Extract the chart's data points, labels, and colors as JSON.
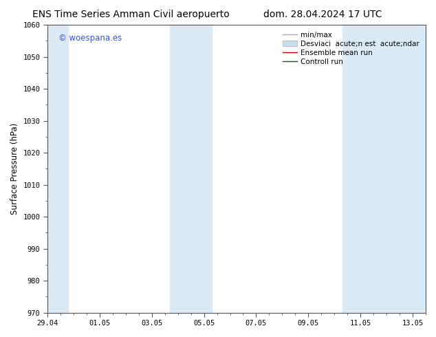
{
  "title_left": "ENS Time Series Amman Civil aeropuerto",
  "title_right": "dom. 28.04.2024 17 UTC",
  "ylabel": "Surface Pressure (hPa)",
  "ylim": [
    970,
    1060
  ],
  "yticks": [
    970,
    980,
    990,
    1000,
    1010,
    1020,
    1030,
    1040,
    1050,
    1060
  ],
  "xtick_labels": [
    "29.04",
    "01.05",
    "03.05",
    "05.05",
    "07.05",
    "09.05",
    "11.05",
    "13.05"
  ],
  "xtick_positions": [
    0,
    2,
    4,
    6,
    8,
    10,
    12,
    14
  ],
  "xlim": [
    0,
    14.5
  ],
  "shaded_bands": [
    {
      "x_start": 0.0,
      "x_end": 0.8
    },
    {
      "x_start": 4.7,
      "x_end": 6.3
    },
    {
      "x_start": 11.3,
      "x_end": 14.5
    }
  ],
  "shaded_color": "#daeaf7",
  "background_color": "#ffffff",
  "watermark_text": "© woespana.es",
  "watermark_color": "#3355cc",
  "legend_entries": [
    {
      "label": "min/max",
      "color": "#aaaaaa",
      "lw": 1.0
    },
    {
      "label": "Desviaci  acute;n est  acute;ndar",
      "color": "#c8dff0",
      "patch": true
    },
    {
      "label": "Ensemble mean run",
      "color": "#cc0000",
      "lw": 1.0
    },
    {
      "label": "Controll run",
      "color": "#006600",
      "lw": 1.0
    }
  ],
  "title_fontsize": 10,
  "tick_fontsize": 7.5,
  "ylabel_fontsize": 8.5,
  "legend_fontsize": 7.5,
  "grid_color": "#cccccc",
  "spine_color": "#555555"
}
